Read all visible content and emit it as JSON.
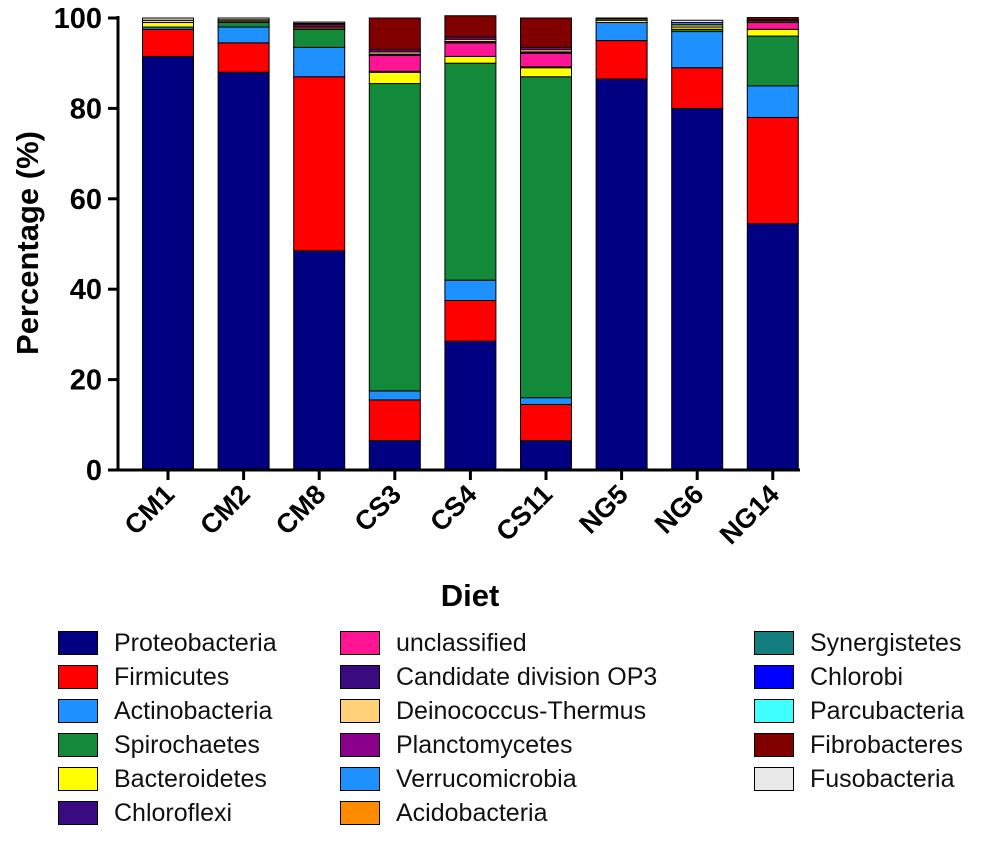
{
  "chart_data": {
    "type": "bar",
    "stacked": true,
    "title": "",
    "xlabel": "Diet",
    "ylabel": "Percentage (%)",
    "ylim": [
      0,
      100
    ],
    "yticks": [
      "0",
      "20",
      "40",
      "60",
      "80",
      "100"
    ],
    "categories": [
      "CM1",
      "CM2",
      "CM8",
      "CS3",
      "CS4",
      "CS11",
      "NG5",
      "NG6",
      "NG14"
    ],
    "series": [
      {
        "name": "Proteobacteria",
        "color": "#000080",
        "values": [
          91.5,
          88.0,
          48.5,
          6.5,
          28.5,
          6.5,
          86.5,
          80.0,
          54.5
        ]
      },
      {
        "name": "Firmicutes",
        "color": "#ff0000",
        "values": [
          6.0,
          6.5,
          38.5,
          9.0,
          9.0,
          8.0,
          8.5,
          9.0,
          23.5
        ]
      },
      {
        "name": "Actinobacteria",
        "color": "#1e90ff",
        "values": [
          0.5,
          3.5,
          6.5,
          2.0,
          4.5,
          1.5,
          4.0,
          8.0,
          7.0
        ]
      },
      {
        "name": "Spirochaetes",
        "color": "#138a3a",
        "values": [
          0.0,
          1.0,
          4.0,
          68.0,
          48.0,
          71.0,
          0.0,
          0.5,
          11.0
        ]
      },
      {
        "name": "Bacteroidetes",
        "color": "#ffff00",
        "values": [
          1.0,
          0.3,
          0.3,
          2.5,
          1.5,
          2.0,
          0.5,
          0.5,
          1.5
        ]
      },
      {
        "name": "Chloroflexi",
        "color": "#3a0a80",
        "values": [
          0.0,
          0.0,
          0.0,
          0.2,
          0.0,
          0.2,
          0.0,
          0.0,
          0.0
        ]
      },
      {
        "name": "unclassified",
        "color": "#ff1493",
        "values": [
          0.0,
          0.0,
          0.4,
          3.5,
          3.0,
          3.0,
          0.0,
          0.0,
          1.5
        ]
      },
      {
        "name": "Candidate division OP3",
        "color": "#3a0a80",
        "values": [
          0.0,
          0.0,
          0.0,
          0.3,
          0.3,
          0.3,
          0.0,
          0.0,
          0.0
        ]
      },
      {
        "name": "Deinococcus-Thermus",
        "color": "#ffd27a",
        "values": [
          0.5,
          0.3,
          0.3,
          0.5,
          0.5,
          0.5,
          0.3,
          0.5,
          0.3
        ]
      },
      {
        "name": "Planctomycetes",
        "color": "#8b008b",
        "values": [
          0.0,
          0.0,
          0.3,
          0.5,
          0.5,
          0.5,
          0.0,
          0.0,
          0.3
        ]
      },
      {
        "name": "Verrucomicrobia",
        "color": "#1e90ff",
        "values": [
          0.0,
          0.0,
          0.0,
          0.0,
          0.0,
          0.0,
          0.0,
          0.5,
          0.0
        ]
      },
      {
        "name": "Acidobacteria",
        "color": "#ff8c00",
        "values": [
          0.0,
          0.0,
          0.0,
          0.0,
          0.0,
          0.0,
          0.0,
          0.0,
          0.0
        ]
      },
      {
        "name": "Synergistetes",
        "color": "#127d7d",
        "values": [
          0.0,
          0.0,
          0.0,
          0.0,
          0.0,
          0.0,
          0.0,
          0.0,
          0.0
        ]
      },
      {
        "name": "Chlorobi",
        "color": "#0000ff",
        "values": [
          0.0,
          0.0,
          0.0,
          0.0,
          0.0,
          0.0,
          0.0,
          0.0,
          0.0
        ]
      },
      {
        "name": "Parcubacteria",
        "color": "#40ffff",
        "values": [
          0.0,
          0.0,
          0.0,
          0.0,
          0.0,
          0.0,
          0.0,
          0.0,
          0.0
        ]
      },
      {
        "name": "Fibrobacteres",
        "color": "#800000",
        "values": [
          0.0,
          0.0,
          0.0,
          7.0,
          4.7,
          6.5,
          0.0,
          0.0,
          0.5
        ]
      },
      {
        "name": "Fusobacteria",
        "color": "#e8e8e8",
        "values": [
          0.5,
          0.4,
          0.3,
          0.0,
          0.0,
          0.0,
          0.2,
          0.5,
          0.0
        ]
      }
    ],
    "legend": {
      "placement": "bottom",
      "columns": [
        [
          "Proteobacteria",
          "Firmicutes",
          "Actinobacteria",
          "Spirochaetes",
          "Bacteroidetes",
          "Chloroflexi"
        ],
        [
          "unclassified",
          "Candidate division OP3",
          "Deinococcus-Thermus",
          "Planctomycetes",
          "Verrucomicrobia",
          "Acidobacteria"
        ],
        [
          "Synergistetes",
          "Chlorobi",
          "Parcubacteria",
          "Fibrobacteres",
          "Fusobacteria"
        ]
      ]
    }
  }
}
